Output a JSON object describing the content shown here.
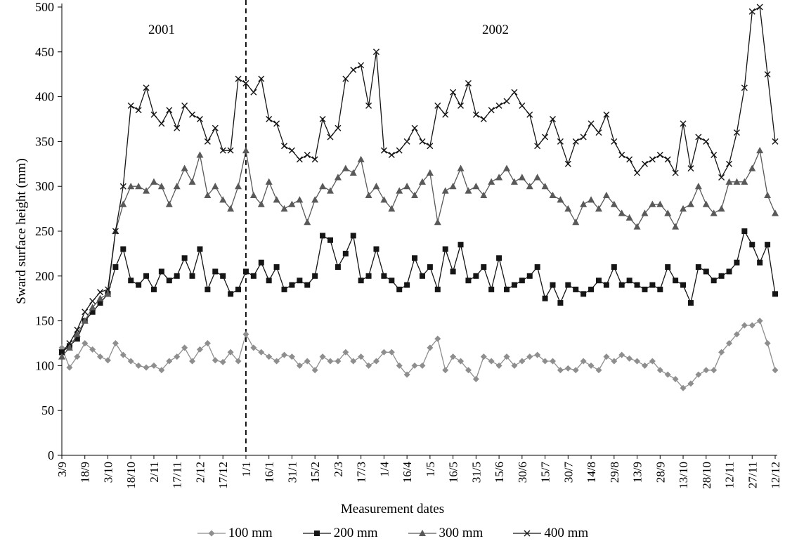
{
  "chart_data": {
    "type": "line",
    "title": "",
    "ylabel": "Sward surface height (mm)",
    "xlabel": "Measurement dates",
    "ylim": [
      0,
      500
    ],
    "yticks": [
      0,
      50,
      100,
      150,
      200,
      250,
      300,
      350,
      400,
      450,
      500
    ],
    "grid": false,
    "legend_position": "bottom",
    "points_per_tick": 3,
    "x_tick_labels": [
      "3/9",
      "18/9",
      "3/10",
      "18/10",
      "2/11",
      "17/11",
      "2/12",
      "17/12",
      "1/1",
      "16/1",
      "31/1",
      "15/2",
      "2/3",
      "17/3",
      "1/4",
      "16/4",
      "1/5",
      "16/5",
      "31/5",
      "15/6",
      "30/6",
      "15/7",
      "30/7",
      "14/8",
      "29/8",
      "13/9",
      "28/9",
      "13/10",
      "28/10",
      "12/11",
      "27/11",
      "12/12"
    ],
    "annotations": {
      "year_left": "2001",
      "year_right": "2002",
      "divider_index": 24,
      "divider_style": "dashed"
    },
    "series": [
      {
        "name": "100 mm",
        "marker": "diamond",
        "color": "#8e8e8e",
        "values": [
          120,
          98,
          110,
          125,
          118,
          110,
          106,
          125,
          112,
          105,
          100,
          98,
          100,
          95,
          105,
          110,
          120,
          105,
          118,
          125,
          106,
          104,
          115,
          105,
          135,
          120,
          115,
          110,
          105,
          112,
          110,
          100,
          105,
          95,
          110,
          105,
          105,
          115,
          105,
          110,
          100,
          105,
          115,
          115,
          100,
          90,
          100,
          100,
          120,
          130,
          95,
          110,
          105,
          95,
          85,
          110,
          105,
          100,
          110,
          100,
          105,
          110,
          112,
          105,
          105,
          95,
          97,
          95,
          105,
          100,
          95,
          110,
          105,
          112,
          108,
          105,
          100,
          105,
          95,
          90,
          85,
          75,
          80,
          90,
          95,
          95,
          115,
          125,
          135,
          145,
          145,
          150,
          125,
          95
        ]
      },
      {
        "name": "200 mm",
        "marker": "square",
        "color": "#151515",
        "values": [
          115,
          122,
          130,
          150,
          160,
          170,
          180,
          210,
          230,
          195,
          190,
          200,
          185,
          205,
          195,
          200,
          220,
          200,
          230,
          185,
          205,
          200,
          180,
          185,
          205,
          200,
          215,
          195,
          210,
          185,
          190,
          195,
          190,
          200,
          245,
          240,
          210,
          225,
          245,
          195,
          200,
          230,
          200,
          195,
          185,
          190,
          220,
          200,
          210,
          185,
          230,
          205,
          235,
          195,
          200,
          210,
          185,
          220,
          185,
          190,
          195,
          200,
          210,
          175,
          190,
          170,
          190,
          185,
          180,
          185,
          195,
          190,
          210,
          190,
          195,
          190,
          185,
          190,
          185,
          210,
          195,
          190,
          170,
          210,
          205,
          195,
          200,
          205,
          215,
          250,
          235,
          215,
          235,
          180
        ]
      },
      {
        "name": "300 mm",
        "marker": "triangle",
        "color": "#595959",
        "values": [
          110,
          120,
          135,
          150,
          165,
          175,
          180,
          250,
          280,
          300,
          300,
          295,
          305,
          300,
          280,
          300,
          320,
          305,
          335,
          290,
          300,
          285,
          275,
          300,
          340,
          290,
          280,
          305,
          285,
          275,
          280,
          285,
          260,
          285,
          300,
          295,
          310,
          320,
          315,
          330,
          290,
          300,
          285,
          275,
          295,
          300,
          290,
          305,
          315,
          260,
          295,
          300,
          320,
          295,
          300,
          290,
          305,
          310,
          320,
          305,
          310,
          300,
          310,
          300,
          290,
          285,
          275,
          260,
          280,
          285,
          275,
          290,
          280,
          270,
          265,
          255,
          270,
          280,
          280,
          270,
          255,
          275,
          280,
          300,
          280,
          270,
          275,
          305,
          305,
          305,
          320,
          340,
          290,
          270
        ]
      },
      {
        "name": "400 mm",
        "marker": "x",
        "color": "#151515",
        "values": [
          115,
          125,
          140,
          160,
          172,
          182,
          185,
          250,
          300,
          390,
          385,
          410,
          380,
          370,
          385,
          365,
          390,
          380,
          375,
          350,
          365,
          340,
          340,
          420,
          415,
          405,
          420,
          375,
          370,
          345,
          340,
          330,
          335,
          330,
          375,
          355,
          365,
          420,
          430,
          435,
          390,
          450,
          340,
          335,
          340,
          350,
          365,
          350,
          345,
          390,
          380,
          405,
          390,
          415,
          380,
          375,
          385,
          390,
          395,
          405,
          390,
          380,
          345,
          355,
          375,
          350,
          325,
          350,
          355,
          370,
          360,
          380,
          350,
          335,
          330,
          315,
          325,
          330,
          335,
          330,
          315,
          370,
          320,
          355,
          350,
          335,
          310,
          325,
          360,
          410,
          495,
          500,
          425,
          350
        ]
      }
    ]
  }
}
